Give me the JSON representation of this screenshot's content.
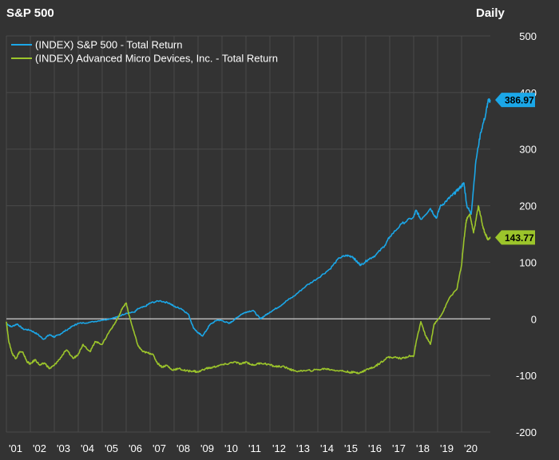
{
  "header": {
    "title": "S&P 500",
    "period": "Daily"
  },
  "chart_data": {
    "type": "line",
    "title": "S&P 500",
    "subtitle": "Daily",
    "xlabel": "",
    "ylabel": "",
    "ylim": [
      -200,
      500
    ],
    "xlim": [
      2001.0,
      2021.2
    ],
    "yticks": [
      500,
      400,
      300,
      200,
      100,
      0,
      -100,
      -200
    ],
    "xtick_labels": [
      "'01",
      "'02",
      "'03",
      "'04",
      "'05",
      "'06",
      "'07",
      "'08",
      "'09",
      "'10",
      "'11",
      "'12",
      "'13",
      "'14",
      "'15",
      "'16",
      "'17",
      "'18",
      "'19",
      "'20"
    ],
    "xtick_years": [
      2001,
      2002,
      2003,
      2004,
      2005,
      2006,
      2007,
      2008,
      2009,
      2010,
      2011,
      2012,
      2013,
      2014,
      2015,
      2016,
      2017,
      2018,
      2019,
      2020
    ],
    "legend_position": "top-left",
    "series": [
      {
        "name": "(INDEX) S&P 500 - Total Return",
        "color": "#1ba7e8",
        "last_value_label": "386.97",
        "last_value": 386.97,
        "x": [
          2001.0,
          2001.2,
          2001.45,
          2001.7,
          2002.0,
          2002.3,
          2002.55,
          2002.8,
          2003.0,
          2003.2,
          2003.5,
          2003.8,
          2004.0,
          2004.5,
          2005.0,
          2005.3,
          2005.6,
          2006.0,
          2006.35,
          2006.5,
          2006.8,
          2007.0,
          2007.4,
          2007.8,
          2008.0,
          2008.3,
          2008.6,
          2008.8,
          2009.0,
          2009.2,
          2009.5,
          2009.8,
          2010.0,
          2010.3,
          2010.5,
          2010.8,
          2011.0,
          2011.3,
          2011.6,
          2011.8,
          2012.0,
          2012.4,
          2012.7,
          2013.0,
          2013.5,
          2014.0,
          2014.5,
          2014.9,
          2015.2,
          2015.45,
          2015.65,
          2015.8,
          2016.1,
          2016.4,
          2016.8,
          2017.0,
          2017.5,
          2018.0,
          2018.1,
          2018.3,
          2018.7,
          2018.95,
          2019.1,
          2019.4,
          2019.6,
          2019.8,
          2020.0,
          2020.1,
          2020.22,
          2020.4,
          2020.6,
          2020.8,
          2021.0,
          2021.1,
          2021.2
        ],
        "y": [
          -8,
          -14,
          -9,
          -18,
          -20,
          -27,
          -36,
          -28,
          -32,
          -28,
          -20,
          -12,
          -8,
          -6,
          -2,
          0,
          3,
          10,
          12,
          18,
          22,
          28,
          32,
          28,
          22,
          18,
          8,
          -15,
          -25,
          -30,
          -10,
          -2,
          -3,
          -8,
          -2,
          8,
          12,
          15,
          0,
          6,
          12,
          22,
          32,
          40,
          58,
          72,
          88,
          108,
          112,
          110,
          100,
          95,
          105,
          112,
          130,
          145,
          168,
          180,
          192,
          176,
          195,
          178,
          198,
          210,
          218,
          226,
          235,
          240,
          200,
          185,
          280,
          330,
          360,
          384,
          386.97
        ]
      },
      {
        "name": "(INDEX) Advanced Micro Devices, Inc. - Total Return",
        "color": "#9cc52b",
        "last_value_label": "143.77",
        "last_value": 143.77,
        "x": [
          2001.0,
          2001.1,
          2001.25,
          2001.4,
          2001.55,
          2001.7,
          2001.85,
          2002.0,
          2002.2,
          2002.4,
          2002.6,
          2002.8,
          2003.0,
          2003.2,
          2003.5,
          2003.8,
          2004.0,
          2004.2,
          2004.5,
          2004.7,
          2005.0,
          2005.3,
          2005.5,
          2005.7,
          2005.85,
          2006.0,
          2006.1,
          2006.3,
          2006.5,
          2006.7,
          2006.9,
          2007.1,
          2007.3,
          2007.5,
          2007.7,
          2007.9,
          2008.2,
          2008.5,
          2008.8,
          2009.0,
          2009.3,
          2009.6,
          2009.9,
          2010.2,
          2010.5,
          2010.8,
          2011.0,
          2011.3,
          2011.6,
          2011.9,
          2012.2,
          2012.5,
          2012.8,
          2013.0,
          2013.5,
          2014.0,
          2014.3,
          2014.6,
          2015.0,
          2015.3,
          2015.6,
          2015.8,
          2016.0,
          2016.3,
          2016.6,
          2016.9,
          2017.2,
          2017.5,
          2017.8,
          2018.0,
          2018.1,
          2018.3,
          2018.5,
          2018.7,
          2018.85,
          2019.0,
          2019.2,
          2019.5,
          2019.8,
          2020.0,
          2020.1,
          2020.2,
          2020.35,
          2020.5,
          2020.6,
          2020.7,
          2020.8,
          2020.9,
          2021.0,
          2021.1,
          2021.2
        ],
        "y": [
          -5,
          -40,
          -62,
          -70,
          -58,
          -60,
          -75,
          -80,
          -72,
          -82,
          -78,
          -88,
          -82,
          -72,
          -55,
          -70,
          -62,
          -45,
          -58,
          -40,
          -45,
          -22,
          -10,
          5,
          20,
          28,
          10,
          -20,
          -48,
          -58,
          -60,
          -62,
          -78,
          -85,
          -82,
          -90,
          -88,
          -92,
          -92,
          -94,
          -88,
          -86,
          -82,
          -80,
          -76,
          -80,
          -76,
          -82,
          -78,
          -80,
          -84,
          -84,
          -88,
          -92,
          -92,
          -90,
          -88,
          -90,
          -92,
          -94,
          -95,
          -95,
          -90,
          -86,
          -78,
          -68,
          -68,
          -70,
          -66,
          -66,
          -42,
          -5,
          -30,
          -45,
          -10,
          -2,
          10,
          38,
          52,
          95,
          140,
          175,
          185,
          152,
          175,
          200,
          182,
          160,
          150,
          140,
          143.77
        ]
      }
    ]
  }
}
